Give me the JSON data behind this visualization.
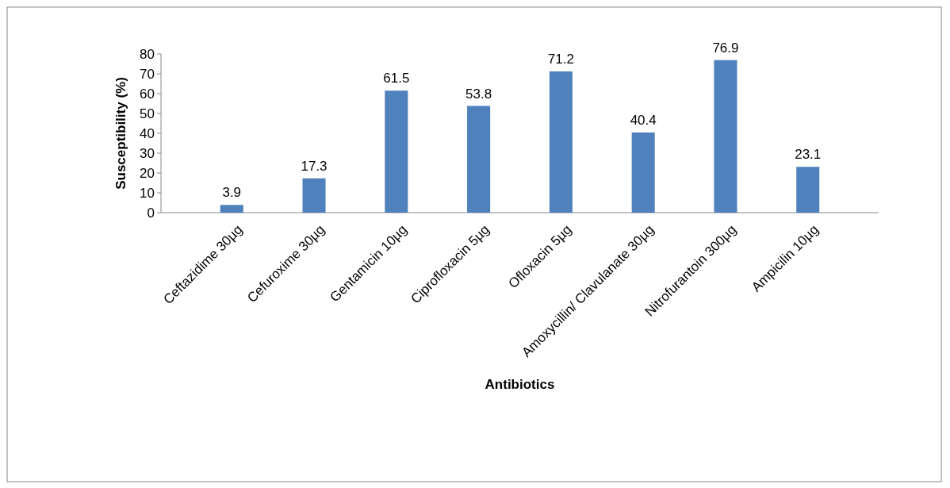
{
  "chart_data": {
    "type": "bar",
    "xlabel": "Antibiotics",
    "ylabel": "Susceptibility (%)",
    "categories": [
      "Ceftazidime 30µg",
      "Cefuroxime 30µg",
      "Gentamicin 10µg",
      "Ciprofloxacin 5µg",
      "Ofloxacin 5µg",
      "Amoxycillin/ Clavulanate 30µg",
      "Nitrofurantoin 300µg",
      "Ampicilin 10µg"
    ],
    "values": [
      3.9,
      17.3,
      61.5,
      53.8,
      71.2,
      40.4,
      76.9,
      23.1
    ],
    "color": "#4f81bd",
    "ylim": [
      0,
      80
    ],
    "yticks": [
      0,
      10,
      20,
      30,
      40,
      50,
      60,
      70,
      80
    ],
    "grid": false,
    "data_labels": true
  }
}
